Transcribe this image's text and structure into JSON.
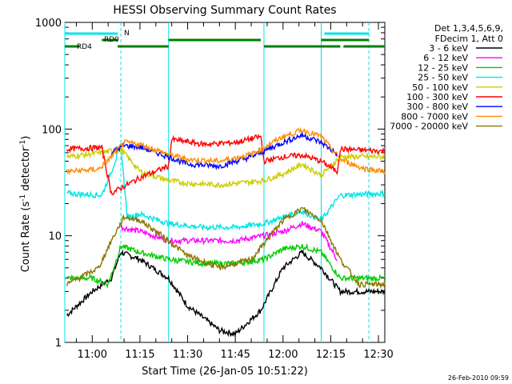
{
  "chart_data": {
    "type": "line",
    "title": "HESSI Observing Summary Count Rates",
    "xlabel": "Start Time (26-Jan-05 10:51:22)",
    "ylabel": "Count Rate (s",
    "ylabel_sup": "-1",
    "ylabel_mid": " detector",
    "ylabel_sup2": "-1",
    "ylabel_end": ")",
    "footer": "26-Feb-2010 09:59",
    "y_scale": "log",
    "ylim": [
      1,
      1000
    ],
    "xlim": [
      "10:51:22",
      "12:32"
    ],
    "x_ticks": [
      "11:00",
      "11:15",
      "11:30",
      "11:45",
      "12:00",
      "12:15",
      "12:30"
    ],
    "y_ticks": [
      "1",
      "10",
      "100",
      "1000"
    ],
    "legend_header": [
      "Det 1,3,4,5,6,9,",
      "FDecim 1, Att 0"
    ],
    "legend_position": "right",
    "flag_labels": [
      "N",
      "RD0",
      "RD4"
    ],
    "flags": [
      {
        "label": "N",
        "color": "#00e5e5",
        "intervals": [
          [
            "10:51:22",
            "11:08"
          ],
          [
            "12:13",
            "12:27"
          ]
        ]
      },
      {
        "label": "RD0",
        "color": "#008000",
        "intervals": [
          [
            "11:03",
            "11:08"
          ],
          [
            "11:24",
            "11:53"
          ],
          [
            "12:12",
            "12:27"
          ]
        ]
      },
      {
        "label": "RD4",
        "color": "#008000",
        "intervals": [
          [
            "10:51:22",
            "10:56"
          ],
          [
            "11:08",
            "11:24"
          ],
          [
            "11:54",
            "12:18"
          ],
          [
            "12:19",
            "12:32"
          ]
        ]
      }
    ],
    "vertical_lines": [
      {
        "time": "10:51:22",
        "color": "#00e5e5",
        "style": "solid"
      },
      {
        "time": "11:09",
        "color": "#00e5e5",
        "style": "dashed"
      },
      {
        "time": "11:24",
        "color": "#00e5e5",
        "style": "solid"
      },
      {
        "time": "11:54",
        "color": "#00e5e5",
        "style": "solid"
      },
      {
        "time": "12:12",
        "color": "#00e5e5",
        "style": "solid"
      },
      {
        "time": "12:27",
        "color": "#00e5e5",
        "style": "dashed"
      }
    ],
    "series": [
      {
        "name": "3 - 6 keV",
        "color": "#000000",
        "points": [
          [
            "10:52",
            1.8
          ],
          [
            "11:00",
            3
          ],
          [
            "11:06",
            4
          ],
          [
            "11:09",
            7
          ],
          [
            "11:15",
            6
          ],
          [
            "11:24",
            4
          ],
          [
            "11:30",
            2.2
          ],
          [
            "11:40",
            1.3
          ],
          [
            "11:45",
            1.2
          ],
          [
            "11:53",
            2
          ],
          [
            "12:00",
            5
          ],
          [
            "12:06",
            7
          ],
          [
            "12:12",
            5
          ],
          [
            "12:18",
            3
          ],
          [
            "12:32",
            3
          ]
        ]
      },
      {
        "name": "6 - 12 keV",
        "color": "#ff00ff",
        "points": [
          [
            "11:09",
            12
          ],
          [
            "11:15",
            11
          ],
          [
            "11:24",
            9
          ],
          [
            "11:35",
            9
          ],
          [
            "11:45",
            9
          ],
          [
            "11:54",
            10
          ],
          [
            "12:00",
            11
          ],
          [
            "12:06",
            13
          ],
          [
            "12:12",
            11
          ],
          [
            "12:17",
            6
          ]
        ]
      },
      {
        "name": "12 - 25 keV",
        "color": "#00cc00",
        "points": [
          [
            "10:52",
            4
          ],
          [
            "11:00",
            4
          ],
          [
            "11:05",
            3.5
          ],
          [
            "11:09",
            8
          ],
          [
            "11:15",
            7
          ],
          [
            "11:24",
            6
          ],
          [
            "11:35",
            5.5
          ],
          [
            "11:45",
            5.5
          ],
          [
            "11:54",
            6
          ],
          [
            "12:00",
            7.5
          ],
          [
            "12:06",
            8
          ],
          [
            "12:12",
            7
          ],
          [
            "12:18",
            4
          ],
          [
            "12:32",
            4
          ]
        ]
      },
      {
        "name": "25 - 50 keV",
        "color": "#00e5e5",
        "points": [
          [
            "10:52",
            25
          ],
          [
            "11:03",
            24
          ],
          [
            "11:06",
            40
          ],
          [
            "11:09",
            70
          ],
          [
            "11:11",
            15
          ],
          [
            "11:15",
            16
          ],
          [
            "11:24",
            13
          ],
          [
            "11:35",
            12
          ],
          [
            "11:45",
            12
          ],
          [
            "11:54",
            13
          ],
          [
            "12:00",
            15
          ],
          [
            "12:06",
            17
          ],
          [
            "12:12",
            14
          ],
          [
            "12:18",
            24
          ],
          [
            "12:32",
            25
          ]
        ]
      },
      {
        "name": "50 - 100 keV",
        "color": "#cccc00",
        "points": [
          [
            "10:52",
            55
          ],
          [
            "11:03",
            60
          ],
          [
            "11:09",
            65
          ],
          [
            "11:15",
            40
          ],
          [
            "11:24",
            33
          ],
          [
            "11:30",
            31
          ],
          [
            "11:40",
            30
          ],
          [
            "11:50",
            32
          ],
          [
            "11:54",
            33
          ],
          [
            "12:00",
            38
          ],
          [
            "12:06",
            47
          ],
          [
            "12:12",
            37
          ],
          [
            "12:18",
            55
          ],
          [
            "12:32",
            55
          ]
        ]
      },
      {
        "name": "100 - 300 keV",
        "color": "#ff0000",
        "points": [
          [
            "10:52",
            65
          ],
          [
            "11:03",
            67
          ],
          [
            "11:06",
            25
          ],
          [
            "11:09",
            28
          ],
          [
            "11:15",
            35
          ],
          [
            "11:24",
            45
          ],
          [
            "11:25",
            80
          ],
          [
            "11:35",
            72
          ],
          [
            "11:45",
            75
          ],
          [
            "11:53",
            85
          ],
          [
            "11:54",
            50
          ],
          [
            "12:00",
            55
          ],
          [
            "12:06",
            57
          ],
          [
            "12:12",
            50
          ],
          [
            "12:17",
            40
          ],
          [
            "12:18",
            65
          ],
          [
            "12:32",
            62
          ]
        ]
      },
      {
        "name": "300 - 800 keV",
        "color": "#0000ff",
        "points": [
          [
            "11:06",
            60
          ],
          [
            "11:10",
            70
          ],
          [
            "11:15",
            68
          ],
          [
            "11:24",
            55
          ],
          [
            "11:30",
            47
          ],
          [
            "11:40",
            45
          ],
          [
            "11:50",
            55
          ],
          [
            "12:00",
            75
          ],
          [
            "12:06",
            88
          ],
          [
            "12:12",
            75
          ],
          [
            "12:17",
            58
          ]
        ]
      },
      {
        "name": "800 - 7000 keV",
        "color": "#ff8c00",
        "points": [
          [
            "10:52",
            40
          ],
          [
            "11:02",
            42
          ],
          [
            "11:06",
            55
          ],
          [
            "11:10",
            75
          ],
          [
            "11:15",
            72
          ],
          [
            "11:24",
            58
          ],
          [
            "11:30",
            52
          ],
          [
            "11:40",
            50
          ],
          [
            "11:50",
            58
          ],
          [
            "12:00",
            85
          ],
          [
            "12:06",
            98
          ],
          [
            "12:12",
            85
          ],
          [
            "12:18",
            52
          ],
          [
            "12:25",
            43
          ],
          [
            "12:32",
            40
          ]
        ]
      },
      {
        "name": "7000 - 20000 keV",
        "color": "#8b7500",
        "points": [
          [
            "10:52",
            3.5
          ],
          [
            "11:02",
            5
          ],
          [
            "11:06",
            9
          ],
          [
            "11:10",
            15
          ],
          [
            "11:15",
            14
          ],
          [
            "11:22",
            10
          ],
          [
            "11:30",
            6.5
          ],
          [
            "11:40",
            5
          ],
          [
            "11:50",
            6
          ],
          [
            "12:00",
            14
          ],
          [
            "12:06",
            18
          ],
          [
            "12:12",
            14
          ],
          [
            "12:18",
            6
          ],
          [
            "12:24",
            3.5
          ],
          [
            "12:32",
            3.5
          ]
        ]
      }
    ]
  }
}
